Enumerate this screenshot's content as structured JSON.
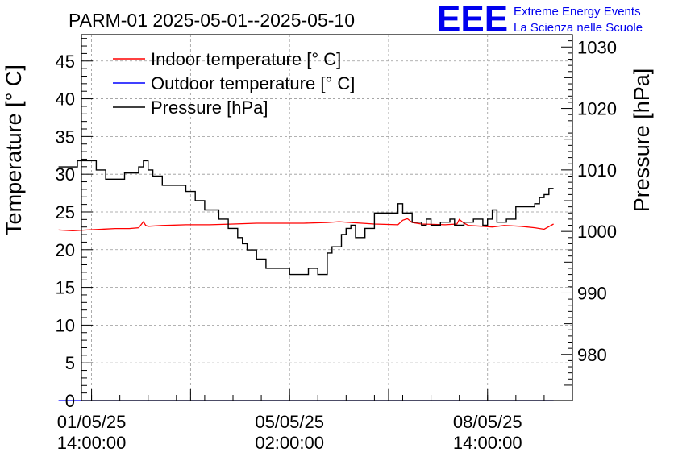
{
  "chart_data": {
    "type": "line",
    "title": "PARM-01 2025-05-01--2025-05-10",
    "ylabel_left": "Temperature [° C]",
    "ylabel_right": "Pressure [hPa]",
    "ylim_left": [
      0,
      48.5
    ],
    "ylim_right": [
      972.5,
      1032
    ],
    "yticks_left": [
      0,
      5,
      10,
      15,
      20,
      25,
      30,
      35,
      40,
      45
    ],
    "yticks_right": [
      980,
      990,
      1000,
      1010,
      1020,
      1030
    ],
    "xlim_hours": [
      -4.3,
      204
    ],
    "xticks": [
      {
        "hour": 0,
        "date": "01/05/25",
        "time": "14:00:00"
      },
      {
        "hour": 84,
        "date": "05/05/25",
        "time": "02:00:00"
      },
      {
        "hour": 168,
        "date": "08/05/25",
        "time": "14:00:00"
      }
    ],
    "grid": true,
    "legend_position": "top-left",
    "logo": {
      "mark": "EEE",
      "line1": "Extreme Energy Events",
      "line2": "La Scienza nelle Scuole",
      "color": "#0000ee"
    },
    "series": [
      {
        "name": "Indoor temperature [° C]",
        "axis": "left",
        "color": "#ff0000",
        "x": [
          -14,
          -8,
          -2,
          4,
          10,
          16,
          20,
          22,
          23,
          24,
          30,
          40,
          50,
          60,
          70,
          80,
          90,
          100,
          105,
          110,
          120,
          130,
          132,
          134,
          136,
          140,
          150,
          155,
          156,
          158,
          160,
          166,
          170,
          175,
          182,
          188,
          192,
          196
        ],
        "values": [
          22.6,
          22.5,
          22.6,
          22.7,
          22.8,
          22.8,
          22.9,
          23.7,
          23.2,
          23.1,
          23.2,
          23.3,
          23.3,
          23.4,
          23.5,
          23.5,
          23.5,
          23.6,
          23.7,
          23.6,
          23.4,
          23.3,
          23.9,
          24.1,
          23.6,
          23.4,
          23.3,
          23.4,
          24.0,
          23.5,
          23.2,
          23.1,
          23.0,
          23.2,
          23.1,
          22.9,
          22.7,
          23.4
        ]
      },
      {
        "name": "Outdoor temperature [° C]",
        "axis": "left",
        "color": "#0000ff",
        "x": [
          -14,
          196
        ],
        "values": [
          0,
          0
        ]
      },
      {
        "name": "Pressure [hPa]",
        "axis": "right",
        "color": "#000000",
        "x": [
          -14,
          -8,
          -6,
          -2,
          2,
          6,
          10,
          14,
          18,
          20,
          22,
          24,
          26,
          30,
          34,
          40,
          44,
          48,
          54,
          58,
          62,
          64,
          66,
          70,
          74,
          80,
          84,
          88,
          92,
          96,
          100,
          102,
          106,
          108,
          110,
          112,
          116,
          120,
          124,
          128,
          130,
          132,
          136,
          140,
          142,
          144,
          148,
          152,
          154,
          158,
          162,
          166,
          168,
          170,
          172,
          176,
          180,
          184,
          188,
          190,
          192,
          194,
          196
        ],
        "values": [
          1010.5,
          1010.5,
          1011.5,
          1011.5,
          1010.0,
          1008.5,
          1008.5,
          1009.5,
          1009.5,
          1010.5,
          1011.5,
          1010.0,
          1009.0,
          1007.5,
          1007.5,
          1006.5,
          1005.0,
          1003.5,
          1002.0,
          1000.5,
          999.0,
          998.0,
          997.0,
          995.5,
          994.0,
          994.0,
          993.0,
          993.0,
          994.0,
          993.0,
          996.5,
          997.5,
          999.5,
          1000.5,
          1001.0,
          999.0,
          1000.5,
          1003.0,
          1003.0,
          1003.0,
          1004.5,
          1003.0,
          1001.5,
          1001.0,
          1002.0,
          1001.0,
          1001.5,
          1002.0,
          1001.0,
          1001.5,
          1002.0,
          1001.0,
          1002.0,
          1003.5,
          1001.5,
          1002.0,
          1004.0,
          1004.0,
          1004.5,
          1005.5,
          1006.0,
          1007.0,
          1007.0
        ]
      }
    ]
  }
}
